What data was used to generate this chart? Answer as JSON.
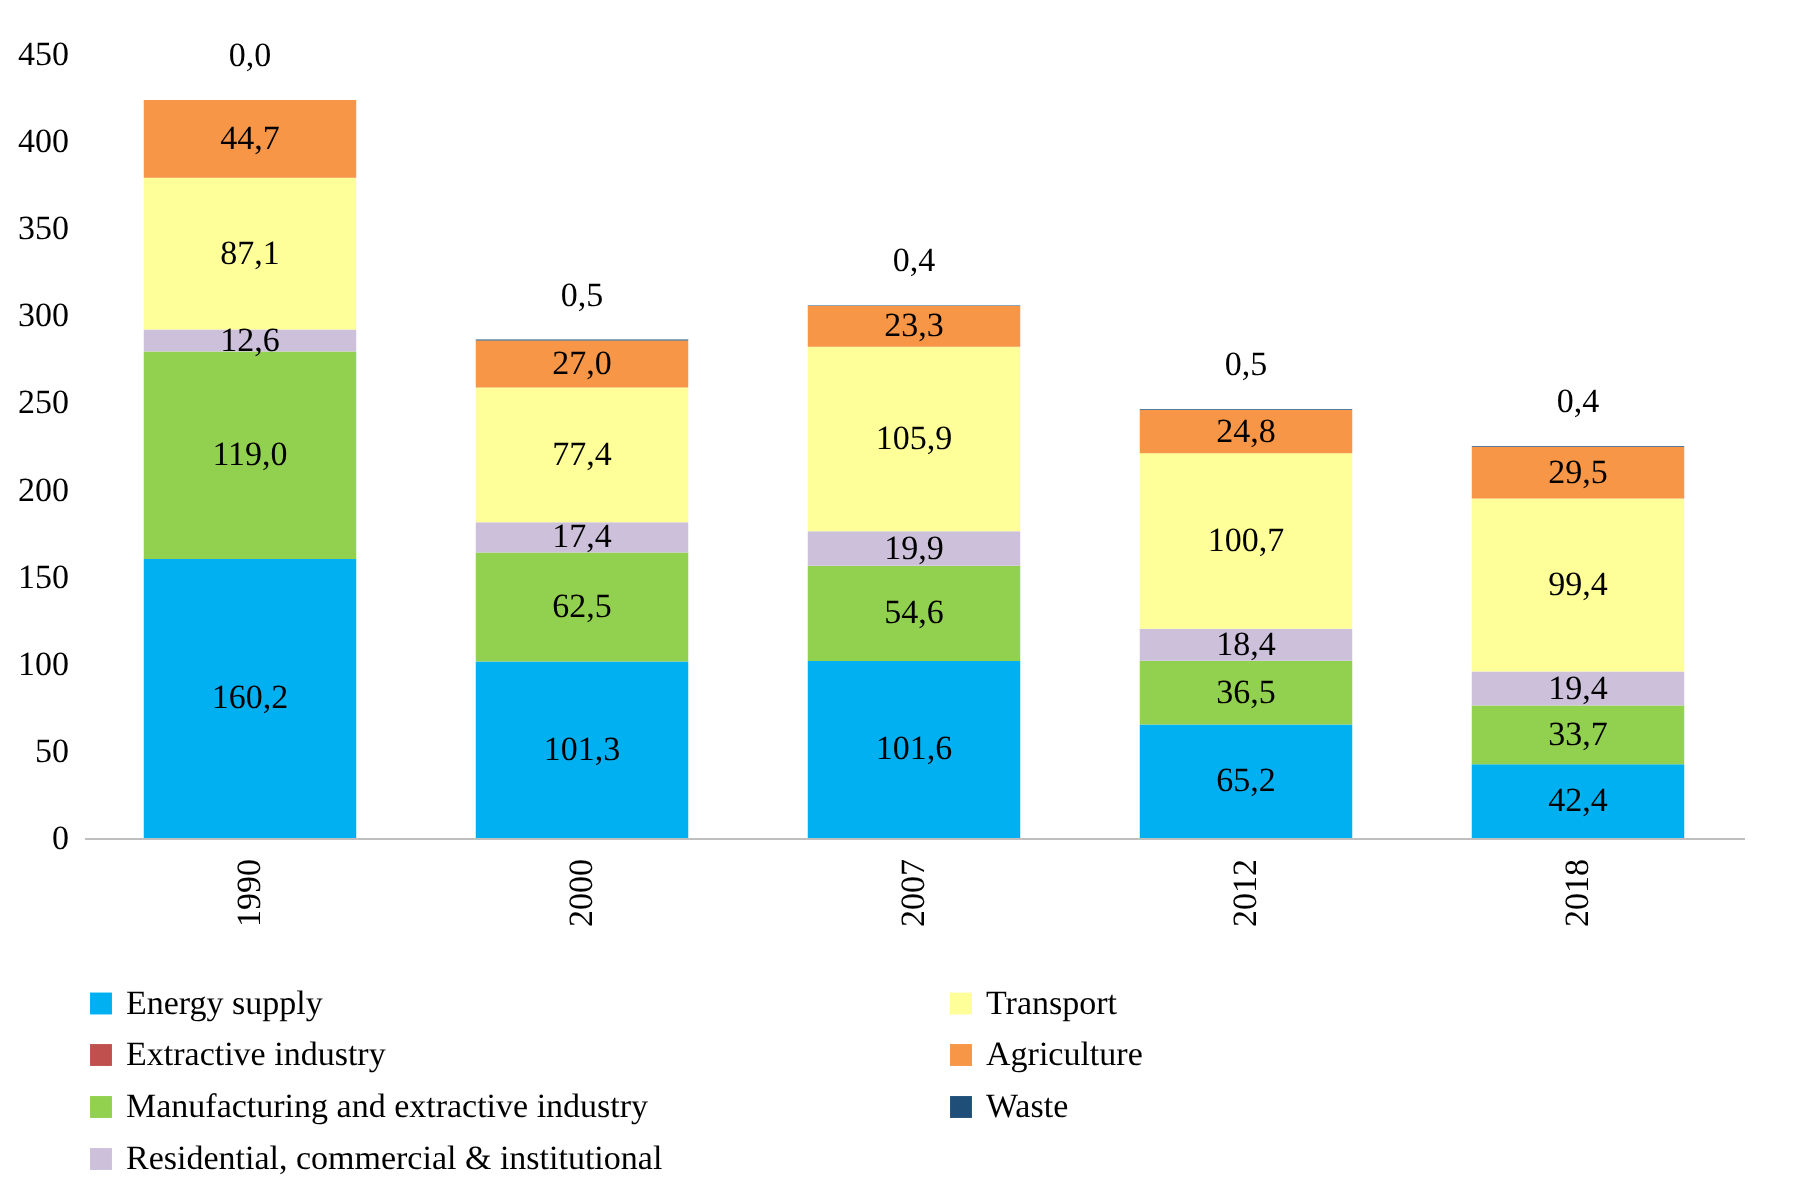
{
  "chart_data": {
    "type": "bar",
    "stacked": true,
    "categories": [
      "1990",
      "2000",
      "2007",
      "2012",
      "2018"
    ],
    "ylim": [
      0,
      450
    ],
    "yticks": [
      0,
      50,
      100,
      150,
      200,
      250,
      300,
      350,
      400,
      450
    ],
    "grid": false,
    "legend": "bottom",
    "series": [
      {
        "name": "Energy supply",
        "color": "#00b0f0",
        "values": [
          160.2,
          101.3,
          101.6,
          65.2,
          42.4
        ],
        "value_labels": [
          "160,2",
          "101,3",
          "101,6",
          "65,2",
          "42,4"
        ]
      },
      {
        "name": "Extractive industry",
        "color": "#c0504d",
        "values": [
          null,
          null,
          null,
          null,
          null
        ]
      },
      {
        "name": "Manufacturing and extractive industry",
        "color": "#92d050",
        "values": [
          119.0,
          62.5,
          54.6,
          36.5,
          33.7
        ],
        "value_labels": [
          "119,0",
          "62,5",
          "54,6",
          "36,5",
          "33,7"
        ]
      },
      {
        "name": "Residential, commercial & institutional",
        "color": "#ccc0da",
        "values": [
          12.6,
          17.4,
          19.9,
          18.4,
          19.4
        ],
        "value_labels": [
          "12,6",
          "17,4",
          "19,9",
          "18,4",
          "19,4"
        ]
      },
      {
        "name": "Transport",
        "color": "#ffff99",
        "values": [
          87.1,
          77.4,
          105.9,
          100.7,
          99.4
        ],
        "value_labels": [
          "87,1",
          "77,4",
          "105,9",
          "100,7",
          "99,4"
        ]
      },
      {
        "name": "Agriculture",
        "color": "#f79646",
        "values": [
          44.7,
          27.0,
          23.3,
          24.8,
          29.5
        ],
        "value_labels": [
          "44,7",
          "27,0",
          "23,3",
          "24,8",
          "29,5"
        ]
      },
      {
        "name": "Waste",
        "color": "#1f4e79",
        "values": [
          0.0,
          0.5,
          0.4,
          0.5,
          0.4
        ],
        "value_labels": [
          "0,0",
          "0,5",
          "0,4",
          "0,5",
          "0,4"
        ]
      }
    ]
  }
}
